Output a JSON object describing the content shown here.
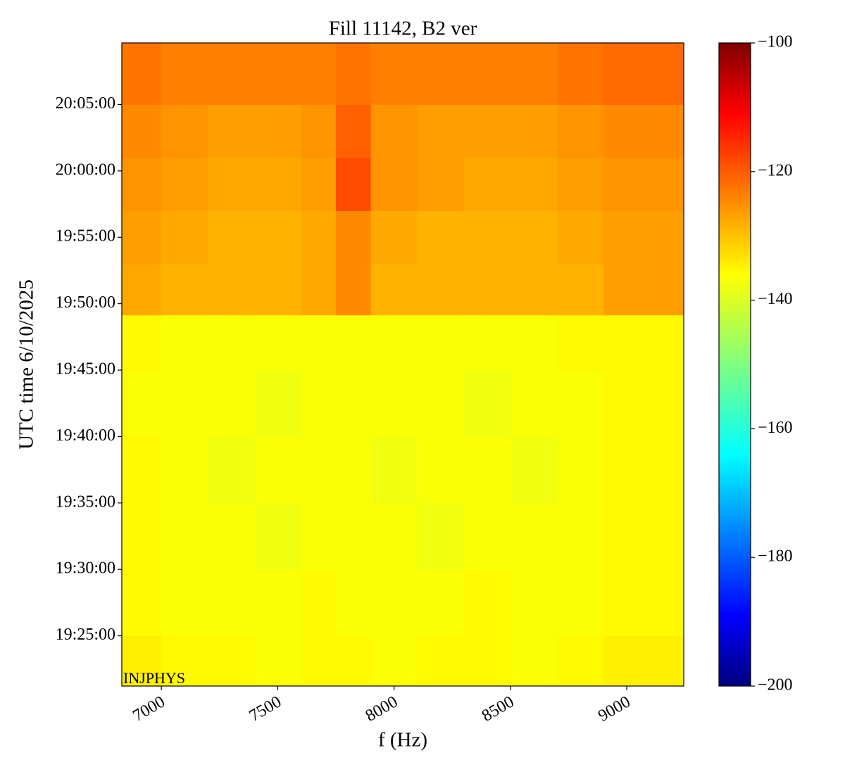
{
  "chart_data": {
    "type": "heatmap",
    "title": "Fill 11142, B2 ver",
    "xlabel": "f (Hz)",
    "ylabel": "UTC time 6/10/2025",
    "annotation": "INJPHYS",
    "colormap": "jet",
    "xlim": [
      6830,
      9245
    ],
    "xticks": [
      7000,
      7500,
      8000,
      8500,
      9000
    ],
    "ylim": [
      "19:21:13",
      "20:09:38"
    ],
    "yticks": [
      "19:25:00",
      "19:30:00",
      "19:35:00",
      "19:40:00",
      "19:45:00",
      "19:50:00",
      "19:55:00",
      "20:00:00",
      "20:05:00"
    ],
    "x_edges": [
      6830,
      7000,
      7200,
      7400,
      7600,
      7750,
      7900,
      8100,
      8300,
      8500,
      8700,
      8900,
      9245
    ],
    "y_edges": [
      "19:21:13",
      "19:25:00",
      "19:30:00",
      "19:35:00",
      "19:40:00",
      "19:45:00",
      "19:49:09",
      "19:53:00",
      "19:57:00",
      "20:01:00",
      "20:05:00",
      "20:09:38"
    ],
    "z": [
      [
        -136,
        -137,
        -137,
        -138,
        -137,
        -137,
        -138,
        -137,
        -137,
        -138,
        -137,
        -136
      ],
      [
        -137,
        -138,
        -138,
        -138,
        -137,
        -138,
        -138,
        -138,
        -137,
        -138,
        -138,
        -137
      ],
      [
        -137,
        -138,
        -138,
        -139,
        -138,
        -138,
        -138,
        -139,
        -138,
        -138,
        -138,
        -137
      ],
      [
        -137,
        -138,
        -139,
        -138,
        -138,
        -138,
        -139,
        -138,
        -138,
        -139,
        -138,
        -137
      ],
      [
        -138,
        -138,
        -138,
        -139,
        -138,
        -138,
        -138,
        -138,
        -139,
        -138,
        -138,
        -137
      ],
      [
        -137,
        -138,
        -138,
        -138,
        -138,
        -138,
        -138,
        -138,
        -138,
        -138,
        -137,
        -137
      ],
      [
        -129,
        -130,
        -130,
        -130,
        -129,
        -126,
        -130,
        -130,
        -130,
        -130,
        -130,
        -128
      ],
      [
        -128,
        -129,
        -130,
        -130,
        -129,
        -126,
        -129,
        -130,
        -130,
        -130,
        -129,
        -128
      ],
      [
        -127,
        -128,
        -129,
        -129,
        -128,
        -120,
        -127,
        -128,
        -129,
        -129,
        -128,
        -127
      ],
      [
        -126,
        -127,
        -128,
        -128,
        -127,
        -122,
        -127,
        -128,
        -128,
        -128,
        -127,
        -126
      ],
      [
        -124,
        -125,
        -125,
        -125,
        -125,
        -124,
        -125,
        -125,
        -125,
        -125,
        -124,
        -123
      ]
    ],
    "clim": [
      -200,
      -100
    ],
    "cticks": [
      {
        "value": -200,
        "label": "−200"
      },
      {
        "value": -180,
        "label": "−180"
      },
      {
        "value": -160,
        "label": "−160"
      },
      {
        "value": -140,
        "label": "−140"
      },
      {
        "value": -120,
        "label": "−120"
      },
      {
        "value": -100,
        "label": "−100"
      }
    ]
  }
}
